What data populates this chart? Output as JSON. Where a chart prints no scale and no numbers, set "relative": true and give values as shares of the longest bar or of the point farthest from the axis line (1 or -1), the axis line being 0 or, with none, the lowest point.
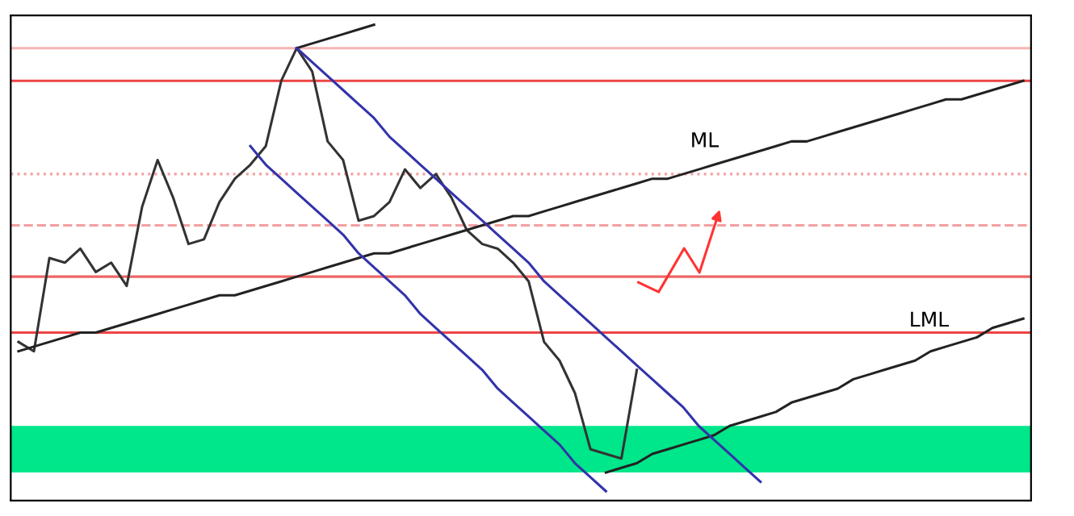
{
  "chart_data": {
    "type": "line",
    "relative": true,
    "legend": false,
    "marker": "none",
    "categories": [
      null,
      null,
      null,
      null,
      null,
      null,
      null,
      null,
      null,
      null,
      null,
      null,
      null,
      null,
      null,
      null,
      null,
      null,
      null,
      null,
      null,
      null,
      null,
      null,
      null,
      null,
      null,
      null,
      null,
      null,
      null,
      null,
      null,
      null,
      null,
      null,
      null,
      null,
      null,
      null,
      null,
      null,
      null,
      null,
      null,
      null,
      null,
      null,
      null,
      null,
      null,
      null,
      null,
      null,
      null,
      null,
      null,
      null,
      null,
      null,
      null,
      null,
      null,
      null,
      null,
      null
    ],
    "series": [
      {
        "color": "#333333",
        "values": [
          0.32,
          0.3,
          0.5,
          0.49,
          0.52,
          0.47,
          0.49,
          0.44,
          0.61,
          0.71,
          0.63,
          0.53,
          0.54,
          0.62,
          0.67,
          0.7,
          0.74,
          0.88,
          0.95,
          0.9,
          0.75,
          0.71,
          0.58,
          0.59,
          0.62,
          0.69,
          0.65,
          0.68,
          0.63,
          0.56,
          0.53,
          0.52,
          0.49,
          0.45,
          0.32,
          0.28,
          0.21,
          0.09,
          0.08,
          0.07,
          0.26,
          null,
          null,
          null,
          null,
          null,
          null,
          null,
          null,
          null,
          null,
          null,
          null,
          null,
          null,
          null,
          null,
          null,
          null,
          null,
          null,
          null,
          null,
          null,
          null,
          null
        ]
      },
      {
        "color": "#222222",
        "values": [
          0.3,
          0.31,
          0.32,
          0.33,
          0.34,
          0.34,
          0.35,
          0.36,
          0.37,
          0.38,
          0.39,
          0.4,
          0.41,
          0.42,
          0.42,
          0.43,
          0.44,
          0.45,
          0.46,
          0.47,
          0.48,
          0.49,
          0.5,
          0.51,
          0.51,
          0.52,
          0.53,
          0.54,
          0.55,
          0.56,
          0.57,
          0.58,
          0.59,
          0.59,
          0.6,
          0.61,
          0.62,
          0.63,
          0.64,
          0.65,
          0.66,
          0.67,
          0.67,
          0.68,
          0.69,
          0.7,
          0.71,
          0.72,
          0.73,
          0.74,
          0.75,
          0.75,
          0.76,
          0.77,
          0.78,
          0.79,
          0.8,
          0.81,
          0.82,
          0.83,
          0.84,
          0.84,
          0.85,
          0.86,
          0.87,
          0.88
        ]
      },
      {
        "color": "#222222",
        "values": [
          null,
          null,
          null,
          null,
          null,
          null,
          null,
          null,
          null,
          null,
          null,
          null,
          null,
          null,
          null,
          null,
          null,
          null,
          null,
          null,
          null,
          null,
          null,
          null,
          null,
          null,
          null,
          null,
          null,
          null,
          null,
          null,
          null,
          null,
          null,
          null,
          null,
          null,
          0.04,
          0.05,
          0.06,
          0.08,
          0.09,
          0.1,
          0.11,
          0.12,
          0.14,
          0.15,
          0.16,
          0.17,
          0.19,
          0.2,
          0.21,
          0.22,
          0.24,
          0.25,
          0.26,
          0.27,
          0.28,
          0.3,
          0.31,
          0.32,
          0.33,
          0.35,
          0.36,
          0.37
        ]
      },
      {
        "color": "#222222",
        "values": [
          null,
          null,
          null,
          null,
          null,
          null,
          null,
          null,
          null,
          null,
          null,
          null,
          null,
          null,
          null,
          null,
          null,
          null,
          0.95,
          0.96,
          0.97,
          0.98,
          0.99,
          1.0,
          null,
          null,
          null,
          null,
          null,
          null,
          null,
          null,
          null,
          null,
          null,
          null,
          null,
          null,
          null,
          null,
          null,
          null,
          null,
          null,
          null,
          null,
          null,
          null,
          null,
          null,
          null,
          null,
          null,
          null,
          null,
          null,
          null,
          null,
          null,
          null,
          null,
          null,
          null,
          null,
          null,
          null
        ]
      },
      {
        "color": "#3333aa",
        "values": [
          null,
          null,
          null,
          null,
          null,
          null,
          null,
          null,
          null,
          null,
          null,
          null,
          null,
          null,
          null,
          null,
          null,
          null,
          0.95,
          0.92,
          0.89,
          0.86,
          0.83,
          0.8,
          0.76,
          0.73,
          0.7,
          0.67,
          0.64,
          0.61,
          0.58,
          0.55,
          0.52,
          0.49,
          0.45,
          0.42,
          0.39,
          0.36,
          0.33,
          0.3,
          0.27,
          0.24,
          0.21,
          0.18,
          0.14,
          0.11,
          0.08,
          0.05,
          0.02,
          null,
          null,
          null,
          null,
          null,
          null,
          null,
          null,
          null,
          null,
          null,
          null,
          null,
          null,
          null,
          null,
          null
        ]
      },
      {
        "color": "#3333aa",
        "values": [
          null,
          null,
          null,
          null,
          null,
          null,
          null,
          null,
          null,
          null,
          null,
          null,
          null,
          null,
          null,
          0.74,
          0.7,
          0.67,
          0.64,
          0.61,
          0.58,
          0.55,
          0.51,
          0.48,
          0.45,
          0.42,
          0.38,
          0.35,
          0.32,
          0.29,
          0.26,
          0.22,
          0.19,
          0.16,
          0.13,
          0.1,
          0.06,
          0.03,
          0,
          null,
          null,
          null,
          null,
          null,
          null,
          null,
          null,
          null,
          null,
          null,
          null,
          null,
          null,
          null,
          null,
          null,
          null,
          null,
          null,
          null,
          null,
          null,
          null,
          null,
          null,
          null
        ]
      }
    ],
    "ref_lines": [
      {
        "axis": "y",
        "value": 0.95,
        "color": "#f8b4b4"
      },
      {
        "axis": "y",
        "value": 0.88,
        "color": "#ee4444"
      },
      {
        "axis": "y",
        "value": 0.34,
        "color": "#ee4444"
      },
      {
        "axis": "y",
        "value": 0.68,
        "color": "#f4a0a0",
        "line_style": "dotted"
      },
      {
        "axis": "y",
        "value": 0.57,
        "color": "#f4a0a0",
        "line_style": "dashed"
      },
      {
        "axis": "y",
        "value": 0.46,
        "color": "#ee6666"
      }
    ],
    "bands": [
      {
        "axis": "y",
        "from": 0.04,
        "to": 0.14,
        "color": "#00e68a"
      }
    ],
    "annotations": [
      "ML",
      "LML"
    ]
  }
}
